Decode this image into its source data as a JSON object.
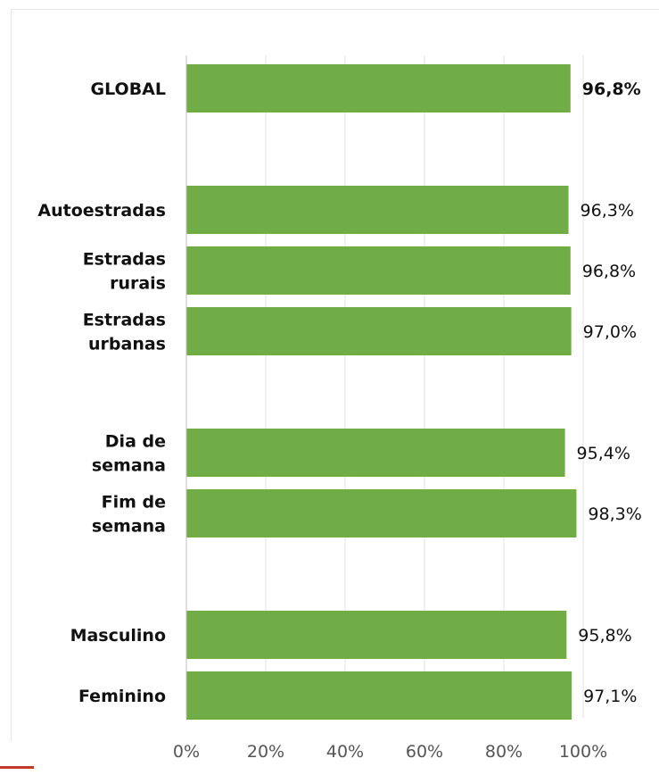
{
  "colors": {
    "bar": "#70ad47",
    "grid": "#e3e3e3",
    "axis": "#bfbfbf",
    "text": "#111111",
    "tick": "#555555"
  },
  "chart_data": {
    "type": "bar",
    "orientation": "horizontal",
    "title": "",
    "xlabel": "",
    "ylabel": "",
    "xlim": [
      0,
      100
    ],
    "grid": true,
    "legend": "none",
    "x_ticks": [
      "0%",
      "20%",
      "40%",
      "60%",
      "80%",
      "100%"
    ],
    "groups": [
      {
        "items": [
          {
            "label": [
              "GLOBAL"
            ],
            "value": 96.8,
            "value_label": "96,8%",
            "bold_value": true
          }
        ]
      },
      {
        "items": [
          {
            "label": [
              "Autoestradas"
            ],
            "value": 96.3,
            "value_label": "96,3%"
          },
          {
            "label": [
              "Estradas",
              "rurais"
            ],
            "value": 96.8,
            "value_label": "96,8%"
          },
          {
            "label": [
              "Estradas",
              "urbanas"
            ],
            "value": 97.0,
            "value_label": "97,0%"
          }
        ]
      },
      {
        "items": [
          {
            "label": [
              "Dia de",
              "semana"
            ],
            "value": 95.4,
            "value_label": "95,4%"
          },
          {
            "label": [
              "Fim de",
              "semana"
            ],
            "value": 98.3,
            "value_label": "98,3%"
          }
        ]
      },
      {
        "items": [
          {
            "label": [
              "Masculino"
            ],
            "value": 95.8,
            "value_label": "95,8%"
          },
          {
            "label": [
              "Feminino"
            ],
            "value": 97.1,
            "value_label": "97,1%"
          }
        ]
      }
    ]
  }
}
